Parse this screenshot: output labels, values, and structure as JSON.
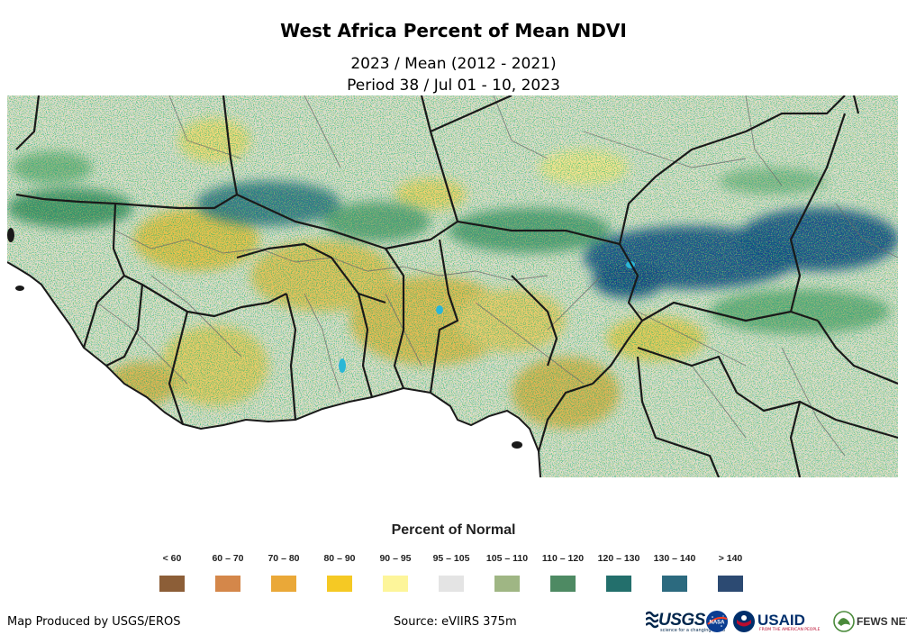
{
  "title": "West Africa Percent of Mean NDVI",
  "subtitle_line1": "2023 / Mean (2012 - 2021)",
  "subtitle_line2": "Period 38 / Jul 01 - 10, 2023",
  "legend": {
    "title": "Percent of Normal",
    "items": [
      {
        "label": "< 60",
        "color": "#8c5e37"
      },
      {
        "label": "60 – 70",
        "color": "#d4874a"
      },
      {
        "label": "70 – 80",
        "color": "#eaa838"
      },
      {
        "label": "80 – 90",
        "color": "#f5c924"
      },
      {
        "label": "90 – 95",
        "color": "#fdf59a"
      },
      {
        "label": "95 – 105",
        "color": "#e4e4e4"
      },
      {
        "label": "105 – 110",
        "color": "#9fb684"
      },
      {
        "label": "110 – 120",
        "color": "#4e8a63"
      },
      {
        "label": "120 – 130",
        "color": "#236f6c"
      },
      {
        "label": "130 – 140",
        "color": "#2c6a7f"
      },
      {
        "label": "> 140",
        "color": "#2c4a72"
      }
    ]
  },
  "footer": {
    "credit": "Map Produced by USGS/EROS",
    "source": "Source: eVIIRS 375m"
  },
  "logos": {
    "usgs": "USGS",
    "usgs_tagline": "science for a changing world",
    "usaid": "USAID",
    "usaid_tagline": "FROM THE AMERICAN PEOPLE",
    "fews": "FEWS NET"
  }
}
